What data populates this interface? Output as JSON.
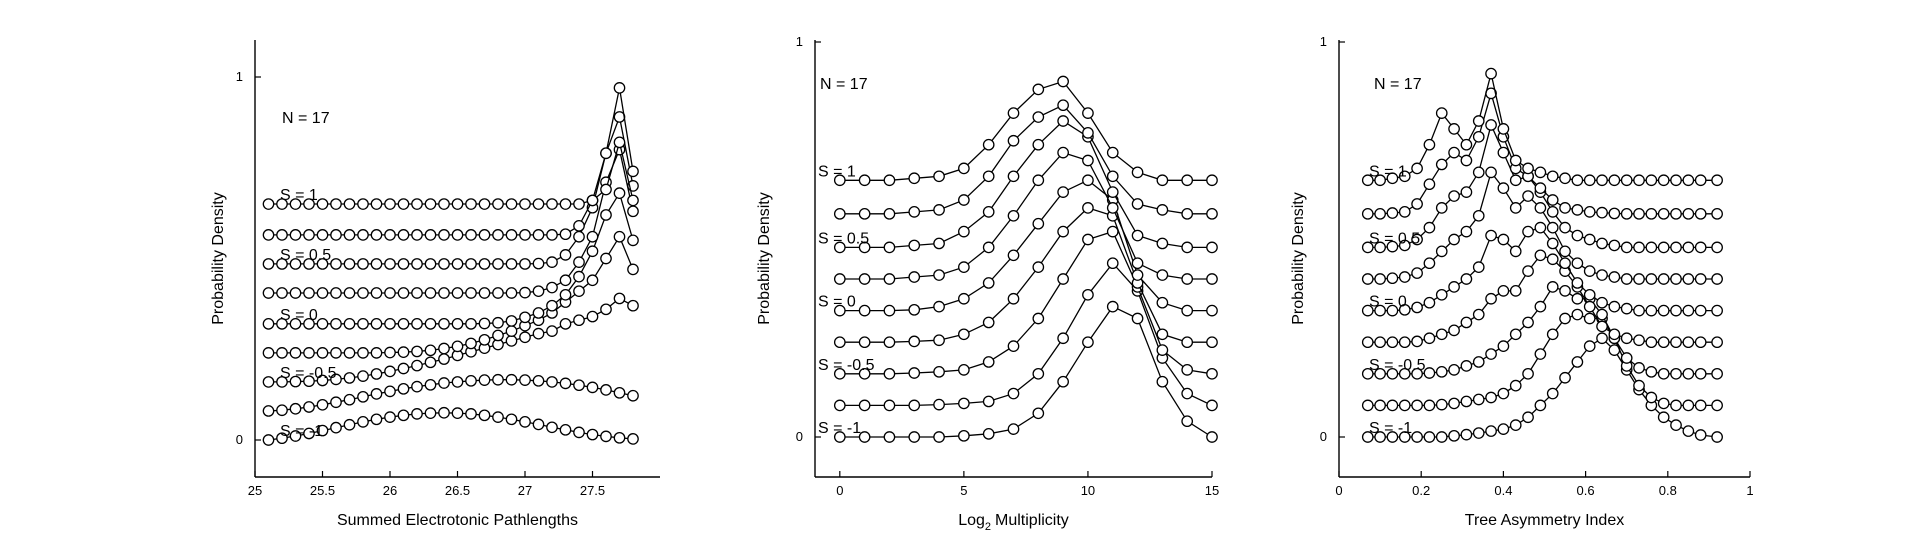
{
  "chart_data": [
    {
      "type": "line",
      "annotation": "N = 17",
      "xlabel": "Summed Electrotonic Pathlengths",
      "ylabel": "Probability Density",
      "xlim": [
        25,
        28
      ],
      "ylim": [
        -0.1,
        1.1
      ],
      "xticks": [
        25,
        25.5,
        26,
        26.5,
        27,
        27.5
      ],
      "xtick_labels": [
        "25",
        "25.5",
        "26",
        "26.5",
        "27",
        "27.5"
      ],
      "yticks": [
        0,
        1
      ],
      "ytick_labels": [
        "0",
        "1"
      ],
      "series_labels": [
        {
          "text": "S = 1",
          "series_index": 0
        },
        {
          "text": "S = 0.5",
          "series_index": 2
        },
        {
          "text": "S = 0",
          "series_index": 4
        },
        {
          "text": "S = -0.5",
          "series_index": 6
        },
        {
          "text": "S = -1",
          "series_index": 8
        }
      ],
      "x": [
        25.1,
        25.2,
        25.3,
        25.4,
        25.5,
        25.6,
        25.7,
        25.8,
        25.9,
        26.0,
        26.1,
        26.2,
        26.3,
        26.4,
        26.5,
        26.6,
        26.7,
        26.8,
        26.9,
        27.0,
        27.1,
        27.2,
        27.3,
        27.4,
        27.5,
        27.6,
        27.7,
        27.8
      ],
      "series": [
        {
          "offset": 0.65,
          "values": [
            0.65,
            0.65,
            0.65,
            0.65,
            0.65,
            0.65,
            0.65,
            0.65,
            0.65,
            0.65,
            0.65,
            0.65,
            0.65,
            0.65,
            0.65,
            0.65,
            0.65,
            0.65,
            0.65,
            0.65,
            0.65,
            0.65,
            0.65,
            0.65,
            0.66,
            0.69,
            0.82,
            0.66
          ]
        },
        {
          "offset": 0.565,
          "values": [
            0.565,
            0.565,
            0.565,
            0.565,
            0.565,
            0.565,
            0.565,
            0.565,
            0.565,
            0.565,
            0.565,
            0.565,
            0.565,
            0.565,
            0.565,
            0.565,
            0.565,
            0.565,
            0.565,
            0.565,
            0.565,
            0.565,
            0.567,
            0.59,
            0.66,
            0.79,
            0.97,
            0.74
          ]
        },
        {
          "offset": 0.485,
          "values": [
            0.485,
            0.485,
            0.485,
            0.485,
            0.485,
            0.485,
            0.485,
            0.485,
            0.485,
            0.485,
            0.485,
            0.485,
            0.485,
            0.485,
            0.485,
            0.485,
            0.485,
            0.485,
            0.485,
            0.485,
            0.486,
            0.49,
            0.51,
            0.56,
            0.64,
            0.79,
            0.89,
            0.7
          ]
        },
        {
          "offset": 0.405,
          "values": [
            0.405,
            0.405,
            0.405,
            0.405,
            0.405,
            0.405,
            0.405,
            0.405,
            0.405,
            0.405,
            0.405,
            0.405,
            0.405,
            0.405,
            0.405,
            0.405,
            0.405,
            0.405,
            0.405,
            0.406,
            0.41,
            0.42,
            0.44,
            0.49,
            0.56,
            0.71,
            0.8,
            0.63
          ]
        },
        {
          "offset": 0.32,
          "values": [
            0.32,
            0.32,
            0.32,
            0.32,
            0.32,
            0.32,
            0.32,
            0.32,
            0.32,
            0.32,
            0.32,
            0.32,
            0.32,
            0.32,
            0.32,
            0.32,
            0.321,
            0.323,
            0.328,
            0.338,
            0.35,
            0.37,
            0.4,
            0.45,
            0.52,
            0.62,
            0.68,
            0.55
          ]
        },
        {
          "offset": 0.24,
          "values": [
            0.24,
            0.24,
            0.24,
            0.24,
            0.24,
            0.24,
            0.24,
            0.24,
            0.24,
            0.241,
            0.242,
            0.244,
            0.247,
            0.252,
            0.258,
            0.266,
            0.276,
            0.288,
            0.3,
            0.315,
            0.33,
            0.35,
            0.38,
            0.41,
            0.44,
            0.5,
            0.56,
            0.47
          ]
        },
        {
          "offset": 0.16,
          "values": [
            0.16,
            0.16,
            0.161,
            0.162,
            0.164,
            0.167,
            0.171,
            0.176,
            0.182,
            0.189,
            0.197,
            0.205,
            0.214,
            0.223,
            0.233,
            0.243,
            0.253,
            0.263,
            0.273,
            0.283,
            0.293,
            0.3,
            0.32,
            0.33,
            0.34,
            0.36,
            0.39,
            0.37
          ]
        },
        {
          "offset": 0.08,
          "values": [
            0.08,
            0.082,
            0.086,
            0.091,
            0.097,
            0.104,
            0.111,
            0.119,
            0.127,
            0.134,
            0.141,
            0.147,
            0.152,
            0.157,
            0.16,
            0.163,
            0.165,
            0.166,
            0.166,
            0.165,
            0.163,
            0.16,
            0.156,
            0.151,
            0.145,
            0.138,
            0.13,
            0.122
          ]
        },
        {
          "offset": 0.0,
          "values": [
            0.0,
            0.005,
            0.011,
            0.018,
            0.026,
            0.034,
            0.042,
            0.05,
            0.057,
            0.063,
            0.068,
            0.072,
            0.074,
            0.075,
            0.074,
            0.072,
            0.068,
            0.063,
            0.057,
            0.05,
            0.043,
            0.035,
            0.028,
            0.021,
            0.015,
            0.01,
            0.006,
            0.003
          ]
        }
      ]
    },
    {
      "type": "line",
      "annotation": "N = 17",
      "xlabel": "Log",
      "xlabel_sub": "2",
      "xlabel_tail": "Multiplicity",
      "ylabel": "Probability Density",
      "xlim": [
        -1,
        15
      ],
      "ylim": [
        -0.1,
        1.0
      ],
      "xticks": [
        0,
        5,
        10,
        15
      ],
      "xtick_labels": [
        "0",
        "5",
        "10",
        "15"
      ],
      "yticks": [
        0,
        1
      ],
      "ytick_labels": [
        "0",
        "1"
      ],
      "series_labels": [
        {
          "text": "S = 1",
          "series_index": 0
        },
        {
          "text": "S = 0.5",
          "series_index": 2
        },
        {
          "text": "S = 0",
          "series_index": 4
        },
        {
          "text": "S = -0.5",
          "series_index": 6
        },
        {
          "text": "S = -1",
          "series_index": 8
        }
      ],
      "x": [
        0,
        1,
        2,
        3,
        4,
        5,
        6,
        7,
        8,
        9,
        10,
        11,
        12,
        13,
        14,
        15
      ],
      "series": [
        {
          "offset": 0.65,
          "values": [
            0.65,
            0.65,
            0.65,
            0.655,
            0.66,
            0.68,
            0.74,
            0.82,
            0.88,
            0.9,
            0.82,
            0.72,
            0.67,
            0.65,
            0.65,
            0.65
          ]
        },
        {
          "offset": 0.565,
          "values": [
            0.565,
            0.565,
            0.565,
            0.57,
            0.575,
            0.6,
            0.66,
            0.75,
            0.81,
            0.84,
            0.77,
            0.66,
            0.59,
            0.575,
            0.565,
            0.565
          ]
        },
        {
          "offset": 0.48,
          "values": [
            0.48,
            0.48,
            0.48,
            0.485,
            0.49,
            0.52,
            0.57,
            0.66,
            0.74,
            0.8,
            0.76,
            0.62,
            0.51,
            0.49,
            0.48,
            0.48
          ]
        },
        {
          "offset": 0.4,
          "values": [
            0.4,
            0.4,
            0.4,
            0.405,
            0.41,
            0.43,
            0.48,
            0.56,
            0.65,
            0.72,
            0.7,
            0.58,
            0.44,
            0.41,
            0.4,
            0.4
          ]
        },
        {
          "offset": 0.32,
          "values": [
            0.32,
            0.32,
            0.32,
            0.322,
            0.33,
            0.35,
            0.39,
            0.46,
            0.54,
            0.62,
            0.65,
            0.6,
            0.41,
            0.34,
            0.32,
            0.32
          ]
        },
        {
          "offset": 0.24,
          "values": [
            0.24,
            0.24,
            0.24,
            0.242,
            0.245,
            0.26,
            0.29,
            0.35,
            0.43,
            0.52,
            0.58,
            0.56,
            0.39,
            0.26,
            0.24,
            0.24
          ]
        },
        {
          "offset": 0.16,
          "values": [
            0.16,
            0.16,
            0.16,
            0.162,
            0.165,
            0.17,
            0.19,
            0.23,
            0.3,
            0.4,
            0.5,
            0.52,
            0.38,
            0.22,
            0.17,
            0.16
          ]
        },
        {
          "offset": 0.08,
          "values": [
            0.08,
            0.08,
            0.08,
            0.08,
            0.082,
            0.085,
            0.09,
            0.11,
            0.16,
            0.25,
            0.36,
            0.44,
            0.37,
            0.2,
            0.11,
            0.08
          ]
        },
        {
          "offset": 0.0,
          "values": [
            0.0,
            0.0,
            0.0,
            0.0,
            0.0,
            0.003,
            0.008,
            0.02,
            0.06,
            0.14,
            0.24,
            0.33,
            0.3,
            0.14,
            0.04,
            0.0
          ]
        }
      ]
    },
    {
      "type": "line",
      "annotation": "N = 17",
      "xlabel": "Tree Asymmetry Index",
      "ylabel": "Probability Density",
      "xlim": [
        0,
        1
      ],
      "ylim": [
        -0.1,
        1.0
      ],
      "xticks": [
        0,
        0.2,
        0.4,
        0.6,
        0.8,
        1
      ],
      "xtick_labels": [
        "0",
        "0.2",
        "0.4",
        "0.6",
        "0.8",
        "1"
      ],
      "yticks": [
        0,
        1
      ],
      "ytick_labels": [
        "0",
        "1"
      ],
      "series_labels": [
        {
          "text": "S = 1",
          "series_index": 0
        },
        {
          "text": "S = 0.5",
          "series_index": 2
        },
        {
          "text": "S = 0",
          "series_index": 4
        },
        {
          "text": "S = -0.5",
          "series_index": 6
        },
        {
          "text": "S = -1",
          "series_index": 8
        }
      ],
      "x": [
        0.07,
        0.1,
        0.13,
        0.16,
        0.19,
        0.22,
        0.25,
        0.28,
        0.31,
        0.34,
        0.37,
        0.4,
        0.43,
        0.46,
        0.49,
        0.52,
        0.55,
        0.58,
        0.61,
        0.64,
        0.67,
        0.7,
        0.73,
        0.76,
        0.79,
        0.82,
        0.85,
        0.88,
        0.92
      ],
      "series": [
        {
          "offset": 0.65,
          "values": [
            0.65,
            0.65,
            0.655,
            0.66,
            0.68,
            0.74,
            0.82,
            0.78,
            0.74,
            0.8,
            0.92,
            0.78,
            0.7,
            0.68,
            0.67,
            0.66,
            0.655,
            0.65,
            0.65,
            0.65,
            0.65,
            0.65,
            0.65,
            0.65,
            0.65,
            0.65,
            0.65,
            0.65,
            0.65
          ]
        },
        {
          "offset": 0.565,
          "values": [
            0.565,
            0.565,
            0.567,
            0.57,
            0.59,
            0.64,
            0.69,
            0.72,
            0.7,
            0.76,
            0.87,
            0.76,
            0.68,
            0.66,
            0.63,
            0.6,
            0.58,
            0.575,
            0.57,
            0.568,
            0.566,
            0.565,
            0.565,
            0.565,
            0.565,
            0.565,
            0.565,
            0.565,
            0.565
          ]
        },
        {
          "offset": 0.48,
          "values": [
            0.48,
            0.48,
            0.482,
            0.485,
            0.5,
            0.53,
            0.58,
            0.61,
            0.62,
            0.67,
            0.79,
            0.72,
            0.65,
            0.66,
            0.62,
            0.57,
            0.53,
            0.51,
            0.5,
            0.49,
            0.485,
            0.48,
            0.48,
            0.48,
            0.48,
            0.48,
            0.48,
            0.48,
            0.48
          ]
        },
        {
          "offset": 0.4,
          "values": [
            0.4,
            0.4,
            0.402,
            0.405,
            0.415,
            0.44,
            0.47,
            0.5,
            0.52,
            0.56,
            0.67,
            0.63,
            0.58,
            0.61,
            0.58,
            0.53,
            0.47,
            0.44,
            0.42,
            0.41,
            0.405,
            0.4,
            0.4,
            0.4,
            0.4,
            0.4,
            0.4,
            0.4,
            0.4
          ]
        },
        {
          "offset": 0.32,
          "values": [
            0.32,
            0.32,
            0.32,
            0.322,
            0.328,
            0.34,
            0.36,
            0.38,
            0.4,
            0.43,
            0.51,
            0.5,
            0.47,
            0.52,
            0.53,
            0.49,
            0.44,
            0.39,
            0.36,
            0.34,
            0.33,
            0.325,
            0.32,
            0.32,
            0.32,
            0.32,
            0.32,
            0.32,
            0.32
          ]
        },
        {
          "offset": 0.24,
          "values": [
            0.24,
            0.24,
            0.24,
            0.24,
            0.242,
            0.25,
            0.26,
            0.27,
            0.29,
            0.31,
            0.35,
            0.37,
            0.37,
            0.42,
            0.46,
            0.45,
            0.42,
            0.38,
            0.33,
            0.28,
            0.26,
            0.25,
            0.245,
            0.24,
            0.24,
            0.24,
            0.24,
            0.24,
            0.24
          ]
        },
        {
          "offset": 0.16,
          "values": [
            0.16,
            0.16,
            0.16,
            0.16,
            0.16,
            0.162,
            0.165,
            0.17,
            0.18,
            0.19,
            0.21,
            0.23,
            0.26,
            0.29,
            0.33,
            0.38,
            0.37,
            0.35,
            0.35,
            0.31,
            0.25,
            0.2,
            0.175,
            0.165,
            0.16,
            0.16,
            0.16,
            0.16,
            0.16
          ]
        },
        {
          "offset": 0.08,
          "values": [
            0.08,
            0.08,
            0.08,
            0.08,
            0.08,
            0.08,
            0.082,
            0.085,
            0.09,
            0.095,
            0.1,
            0.11,
            0.13,
            0.16,
            0.21,
            0.26,
            0.3,
            0.31,
            0.3,
            0.3,
            0.25,
            0.18,
            0.13,
            0.1,
            0.085,
            0.08,
            0.08,
            0.08,
            0.08
          ]
        },
        {
          "offset": 0.0,
          "values": [
            0.0,
            0.0,
            0.0,
            0.0,
            0.0,
            0.0,
            0.0,
            0.003,
            0.006,
            0.01,
            0.015,
            0.02,
            0.03,
            0.05,
            0.08,
            0.11,
            0.15,
            0.19,
            0.23,
            0.25,
            0.22,
            0.17,
            0.12,
            0.08,
            0.05,
            0.03,
            0.015,
            0.005,
            0.0
          ]
        }
      ]
    }
  ]
}
